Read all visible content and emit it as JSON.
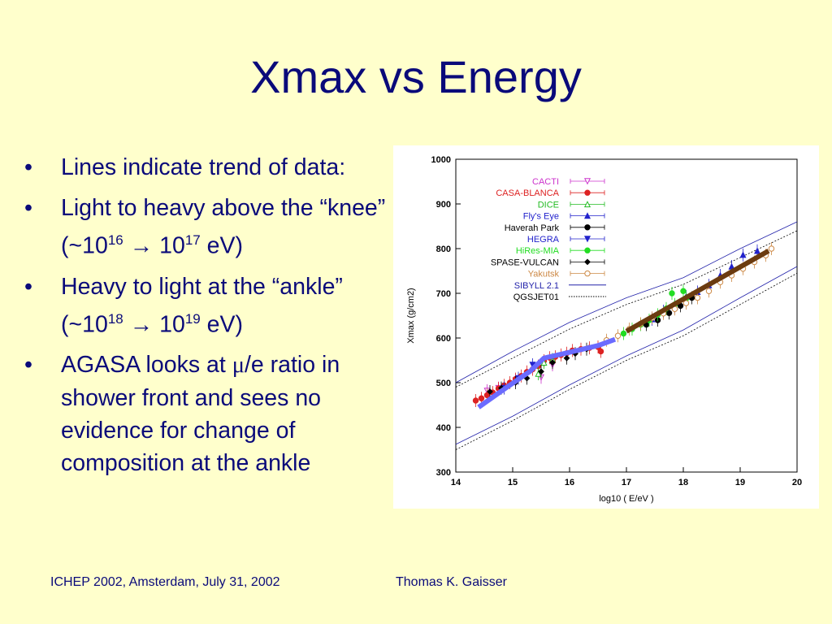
{
  "slide": {
    "title": "Xmax vs Energy",
    "bullets": [
      {
        "text": "Lines indicate trend of data:"
      },
      {
        "text_a": "Light to heavy above the “knee” (~10",
        "sup1": "16",
        "arrow": " → ",
        "mid": "10",
        "sup2": "17",
        "tail": " eV)"
      },
      {
        "text_a": "Heavy to light at the “ankle” (~10",
        "sup1": "18",
        "arrow": " → ",
        "mid": "10",
        "sup2": "19",
        "tail": " eV)"
      },
      {
        "text_a": "AGASA looks at ",
        "mu": "μ",
        "text_b": "/e ratio in shower front and sees no evidence for change of composition at the ankle"
      }
    ],
    "bullet_char": "•",
    "footer_left": "ICHEP 2002, Amsterdam, July 31, 2002",
    "footer_right": "Thomas K. Gaisser",
    "colors": {
      "background": "#ffffcc",
      "text": "#0a0a7a"
    }
  },
  "chart_data": {
    "type": "scatter",
    "xlabel": "log10 ( E/eV )",
    "ylabel": "Xmax (g/cm2)",
    "xlim": [
      14,
      20
    ],
    "ylim": [
      300,
      1000
    ],
    "xticks": [
      14,
      15,
      16,
      17,
      18,
      19,
      20
    ],
    "yticks": [
      300,
      400,
      500,
      600,
      700,
      800,
      900,
      1000
    ],
    "legend_position": "top-left",
    "series": [
      {
        "name": "CACTI",
        "color": "#cc33cc",
        "marker": "triangle-down-open",
        "points": [
          [
            14.55,
            482
          ],
          [
            14.75,
            488
          ],
          [
            15.05,
            505
          ],
          [
            15.5,
            512
          ],
          [
            15.7,
            540
          ]
        ]
      },
      {
        "name": "CASA-BLANCA",
        "color": "#dd2222",
        "marker": "circle",
        "points": [
          [
            14.35,
            460
          ],
          [
            14.45,
            465
          ],
          [
            14.55,
            472
          ],
          [
            14.65,
            478
          ],
          [
            14.75,
            487
          ],
          [
            14.85,
            494
          ],
          [
            14.95,
            500
          ],
          [
            15.05,
            508
          ],
          [
            15.15,
            515
          ],
          [
            15.25,
            524
          ],
          [
            15.35,
            530
          ],
          [
            15.45,
            537
          ],
          [
            15.55,
            549
          ],
          [
            15.65,
            556
          ],
          [
            15.75,
            558
          ],
          [
            15.85,
            562
          ],
          [
            15.95,
            566
          ],
          [
            16.05,
            572
          ],
          [
            16.2,
            575
          ],
          [
            16.35,
            578
          ],
          [
            16.5,
            580
          ],
          [
            16.55,
            570
          ]
        ]
      },
      {
        "name": "DICE",
        "color": "#22bb22",
        "marker": "triangle-open",
        "points": [
          [
            15.45,
            520
          ],
          [
            15.55,
            545
          ],
          [
            15.7,
            552
          ]
        ]
      },
      {
        "name": "Fly's Eye",
        "color": "#2222cc",
        "marker": "triangle",
        "points": [
          [
            17.45,
            642
          ],
          [
            17.65,
            660
          ],
          [
            17.85,
            670
          ],
          [
            18.05,
            693
          ],
          [
            18.25,
            703
          ],
          [
            18.45,
            718
          ],
          [
            18.65,
            740
          ],
          [
            18.85,
            760
          ],
          [
            19.05,
            786
          ],
          [
            19.3,
            795
          ]
        ]
      },
      {
        "name": "Haverah Park",
        "color": "#000000",
        "marker": "circle",
        "points": [
          [
            17.35,
            630
          ],
          [
            17.55,
            640
          ],
          [
            17.75,
            656
          ],
          [
            17.95,
            672
          ],
          [
            18.15,
            690
          ]
        ]
      },
      {
        "name": "HEGRA",
        "color": "#2222cc",
        "marker": "triangle-down",
        "points": [
          [
            14.85,
            488
          ],
          [
            15.1,
            510
          ],
          [
            15.35,
            540
          ]
        ]
      },
      {
        "name": "HiRes-MIA",
        "color": "#22dd22",
        "marker": "circle",
        "points": [
          [
            16.95,
            610
          ],
          [
            17.1,
            620
          ],
          [
            17.25,
            630
          ],
          [
            17.4,
            640
          ],
          [
            17.55,
            652
          ],
          [
            17.7,
            666
          ],
          [
            17.85,
            675
          ],
          [
            18.05,
            688
          ],
          [
            17.8,
            700
          ],
          [
            18.0,
            705
          ]
        ]
      },
      {
        "name": "SPASE-VULCAN",
        "color": "#000000",
        "marker": "diamond",
        "points": [
          [
            14.6,
            480
          ],
          [
            14.8,
            488
          ],
          [
            15.05,
            500
          ],
          [
            15.25,
            510
          ],
          [
            15.5,
            525
          ],
          [
            15.7,
            545
          ],
          [
            15.95,
            555
          ],
          [
            16.1,
            565
          ],
          [
            16.3,
            575
          ]
        ]
      },
      {
        "name": "Yakutsk",
        "color": "#cc8844",
        "marker": "circle-open",
        "points": [
          [
            16.65,
            595
          ],
          [
            16.85,
            605
          ],
          [
            17.05,
            620
          ],
          [
            17.25,
            632
          ],
          [
            17.45,
            645
          ],
          [
            17.65,
            655
          ],
          [
            17.85,
            665
          ],
          [
            18.05,
            678
          ],
          [
            18.25,
            690
          ],
          [
            18.45,
            705
          ],
          [
            18.65,
            725
          ],
          [
            18.85,
            740
          ],
          [
            19.05,
            755
          ],
          [
            19.25,
            770
          ],
          [
            19.45,
            785
          ],
          [
            19.55,
            800
          ]
        ]
      },
      {
        "name": "SIBYLL 2.1",
        "color": "#2222aa",
        "line": "solid"
      },
      {
        "name": "QGSJET01",
        "color": "#000000",
        "line": "dotted"
      }
    ],
    "trend_lines": [
      {
        "color": "#6b6bff",
        "points": [
          [
            14.4,
            445
          ],
          [
            14.9,
            490
          ],
          [
            15.3,
            525
          ],
          [
            15.55,
            555
          ],
          [
            16.0,
            568
          ],
          [
            16.5,
            583
          ],
          [
            16.8,
            597
          ]
        ]
      },
      {
        "color": "#6b3b10",
        "points": [
          [
            17.0,
            615
          ],
          [
            19.5,
            795
          ]
        ]
      }
    ],
    "bands": [
      {
        "color": "#2222aa",
        "dash": "",
        "points": [
          [
            14,
            500
          ],
          [
            15,
            570
          ],
          [
            16,
            635
          ],
          [
            17,
            690
          ],
          [
            18,
            735
          ],
          [
            19,
            800
          ],
          [
            20,
            860
          ]
        ]
      },
      {
        "color": "#000000",
        "dash": "2,2",
        "points": [
          [
            14,
            490
          ],
          [
            15,
            555
          ],
          [
            16,
            620
          ],
          [
            17,
            675
          ],
          [
            18,
            720
          ],
          [
            19,
            780
          ],
          [
            20,
            840
          ]
        ]
      },
      {
        "color": "#2222aa",
        "dash": "",
        "points": [
          [
            14,
            362
          ],
          [
            15,
            425
          ],
          [
            16,
            495
          ],
          [
            17,
            560
          ],
          [
            18,
            618
          ],
          [
            19,
            690
          ],
          [
            20,
            760
          ]
        ]
      },
      {
        "color": "#000000",
        "dash": "2,2",
        "points": [
          [
            14,
            350
          ],
          [
            15,
            415
          ],
          [
            16,
            485
          ],
          [
            17,
            550
          ],
          [
            18,
            605
          ],
          [
            19,
            675
          ],
          [
            20,
            745
          ]
        ]
      }
    ]
  }
}
